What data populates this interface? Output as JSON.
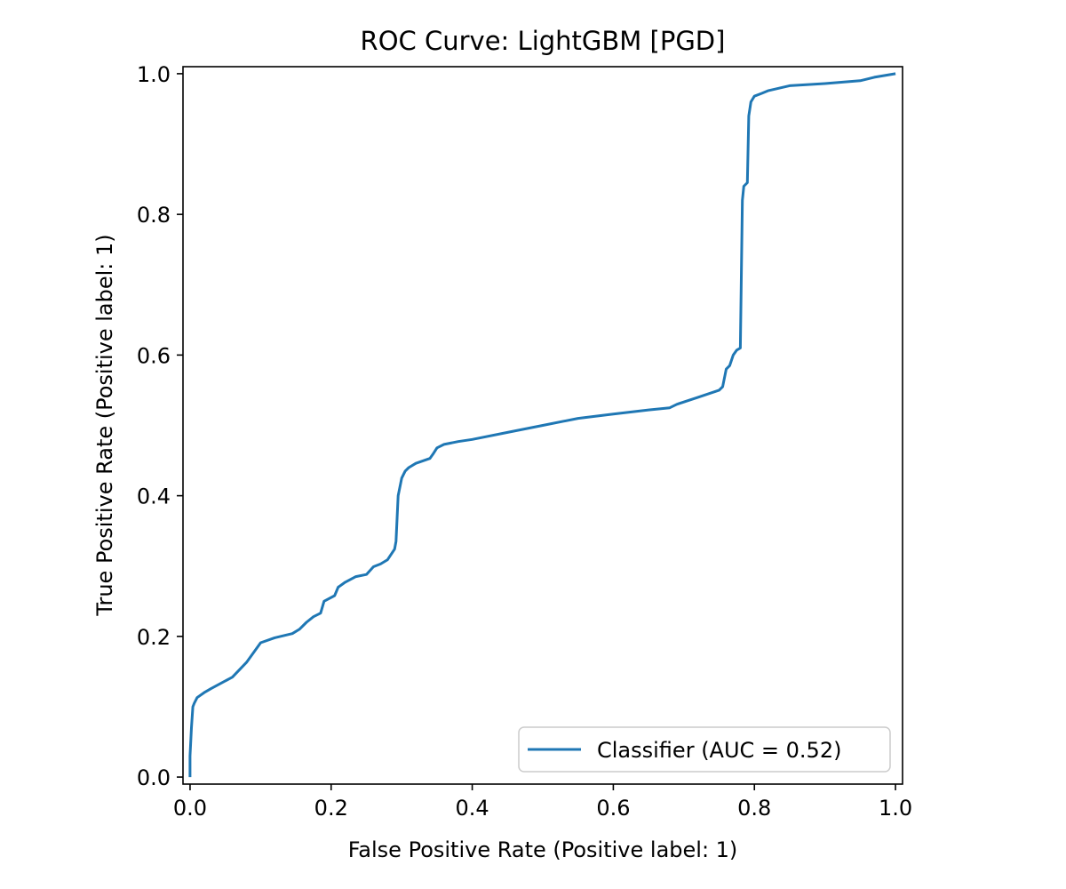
{
  "chart_data": {
    "type": "line",
    "title": "ROC Curve: LightGBM [PGD]",
    "xlabel": "False Positive Rate (Positive label: 1)",
    "ylabel": "True Positive Rate (Positive label: 1)",
    "xlim": [
      -0.01,
      1.01
    ],
    "ylim": [
      -0.01,
      1.01
    ],
    "xticks": [
      0.0,
      0.2,
      0.4,
      0.6,
      0.8,
      1.0
    ],
    "yticks": [
      0.0,
      0.2,
      0.4,
      0.6,
      0.8,
      1.0
    ],
    "xtick_labels": [
      "0.0",
      "0.2",
      "0.4",
      "0.6",
      "0.8",
      "1.0"
    ],
    "ytick_labels": [
      "0.0",
      "0.2",
      "0.4",
      "0.6",
      "0.8",
      "1.0"
    ],
    "grid": false,
    "legend_position": "lower-right",
    "colors": {
      "series": "#1f77b4",
      "axes": "#000000",
      "legend_border": "#cccccc"
    },
    "series": [
      {
        "name": "Classifier (AUC = 0.52)",
        "x": [
          0.0,
          0.0,
          0.002,
          0.004,
          0.006,
          0.01,
          0.02,
          0.03,
          0.06,
          0.08,
          0.1,
          0.12,
          0.145,
          0.155,
          0.165,
          0.175,
          0.185,
          0.19,
          0.205,
          0.21,
          0.22,
          0.235,
          0.25,
          0.26,
          0.27,
          0.28,
          0.29,
          0.292,
          0.295,
          0.3,
          0.305,
          0.31,
          0.32,
          0.34,
          0.345,
          0.35,
          0.36,
          0.38,
          0.4,
          0.45,
          0.5,
          0.55,
          0.6,
          0.65,
          0.68,
          0.69,
          0.72,
          0.75,
          0.755,
          0.76,
          0.765,
          0.77,
          0.775,
          0.78,
          0.783,
          0.785,
          0.79,
          0.792,
          0.795,
          0.8,
          0.81,
          0.82,
          0.85,
          0.9,
          0.95,
          0.97,
          1.0
        ],
        "y": [
          0.0,
          0.03,
          0.07,
          0.1,
          0.105,
          0.113,
          0.12,
          0.126,
          0.142,
          0.163,
          0.191,
          0.198,
          0.204,
          0.21,
          0.22,
          0.228,
          0.233,
          0.25,
          0.258,
          0.27,
          0.277,
          0.285,
          0.288,
          0.299,
          0.303,
          0.309,
          0.324,
          0.335,
          0.4,
          0.425,
          0.435,
          0.44,
          0.446,
          0.453,
          0.46,
          0.468,
          0.473,
          0.477,
          0.48,
          0.49,
          0.5,
          0.51,
          0.516,
          0.522,
          0.525,
          0.53,
          0.54,
          0.55,
          0.555,
          0.58,
          0.585,
          0.6,
          0.607,
          0.61,
          0.82,
          0.84,
          0.845,
          0.94,
          0.96,
          0.968,
          0.972,
          0.976,
          0.983,
          0.986,
          0.99,
          0.995,
          1.0
        ]
      }
    ]
  }
}
